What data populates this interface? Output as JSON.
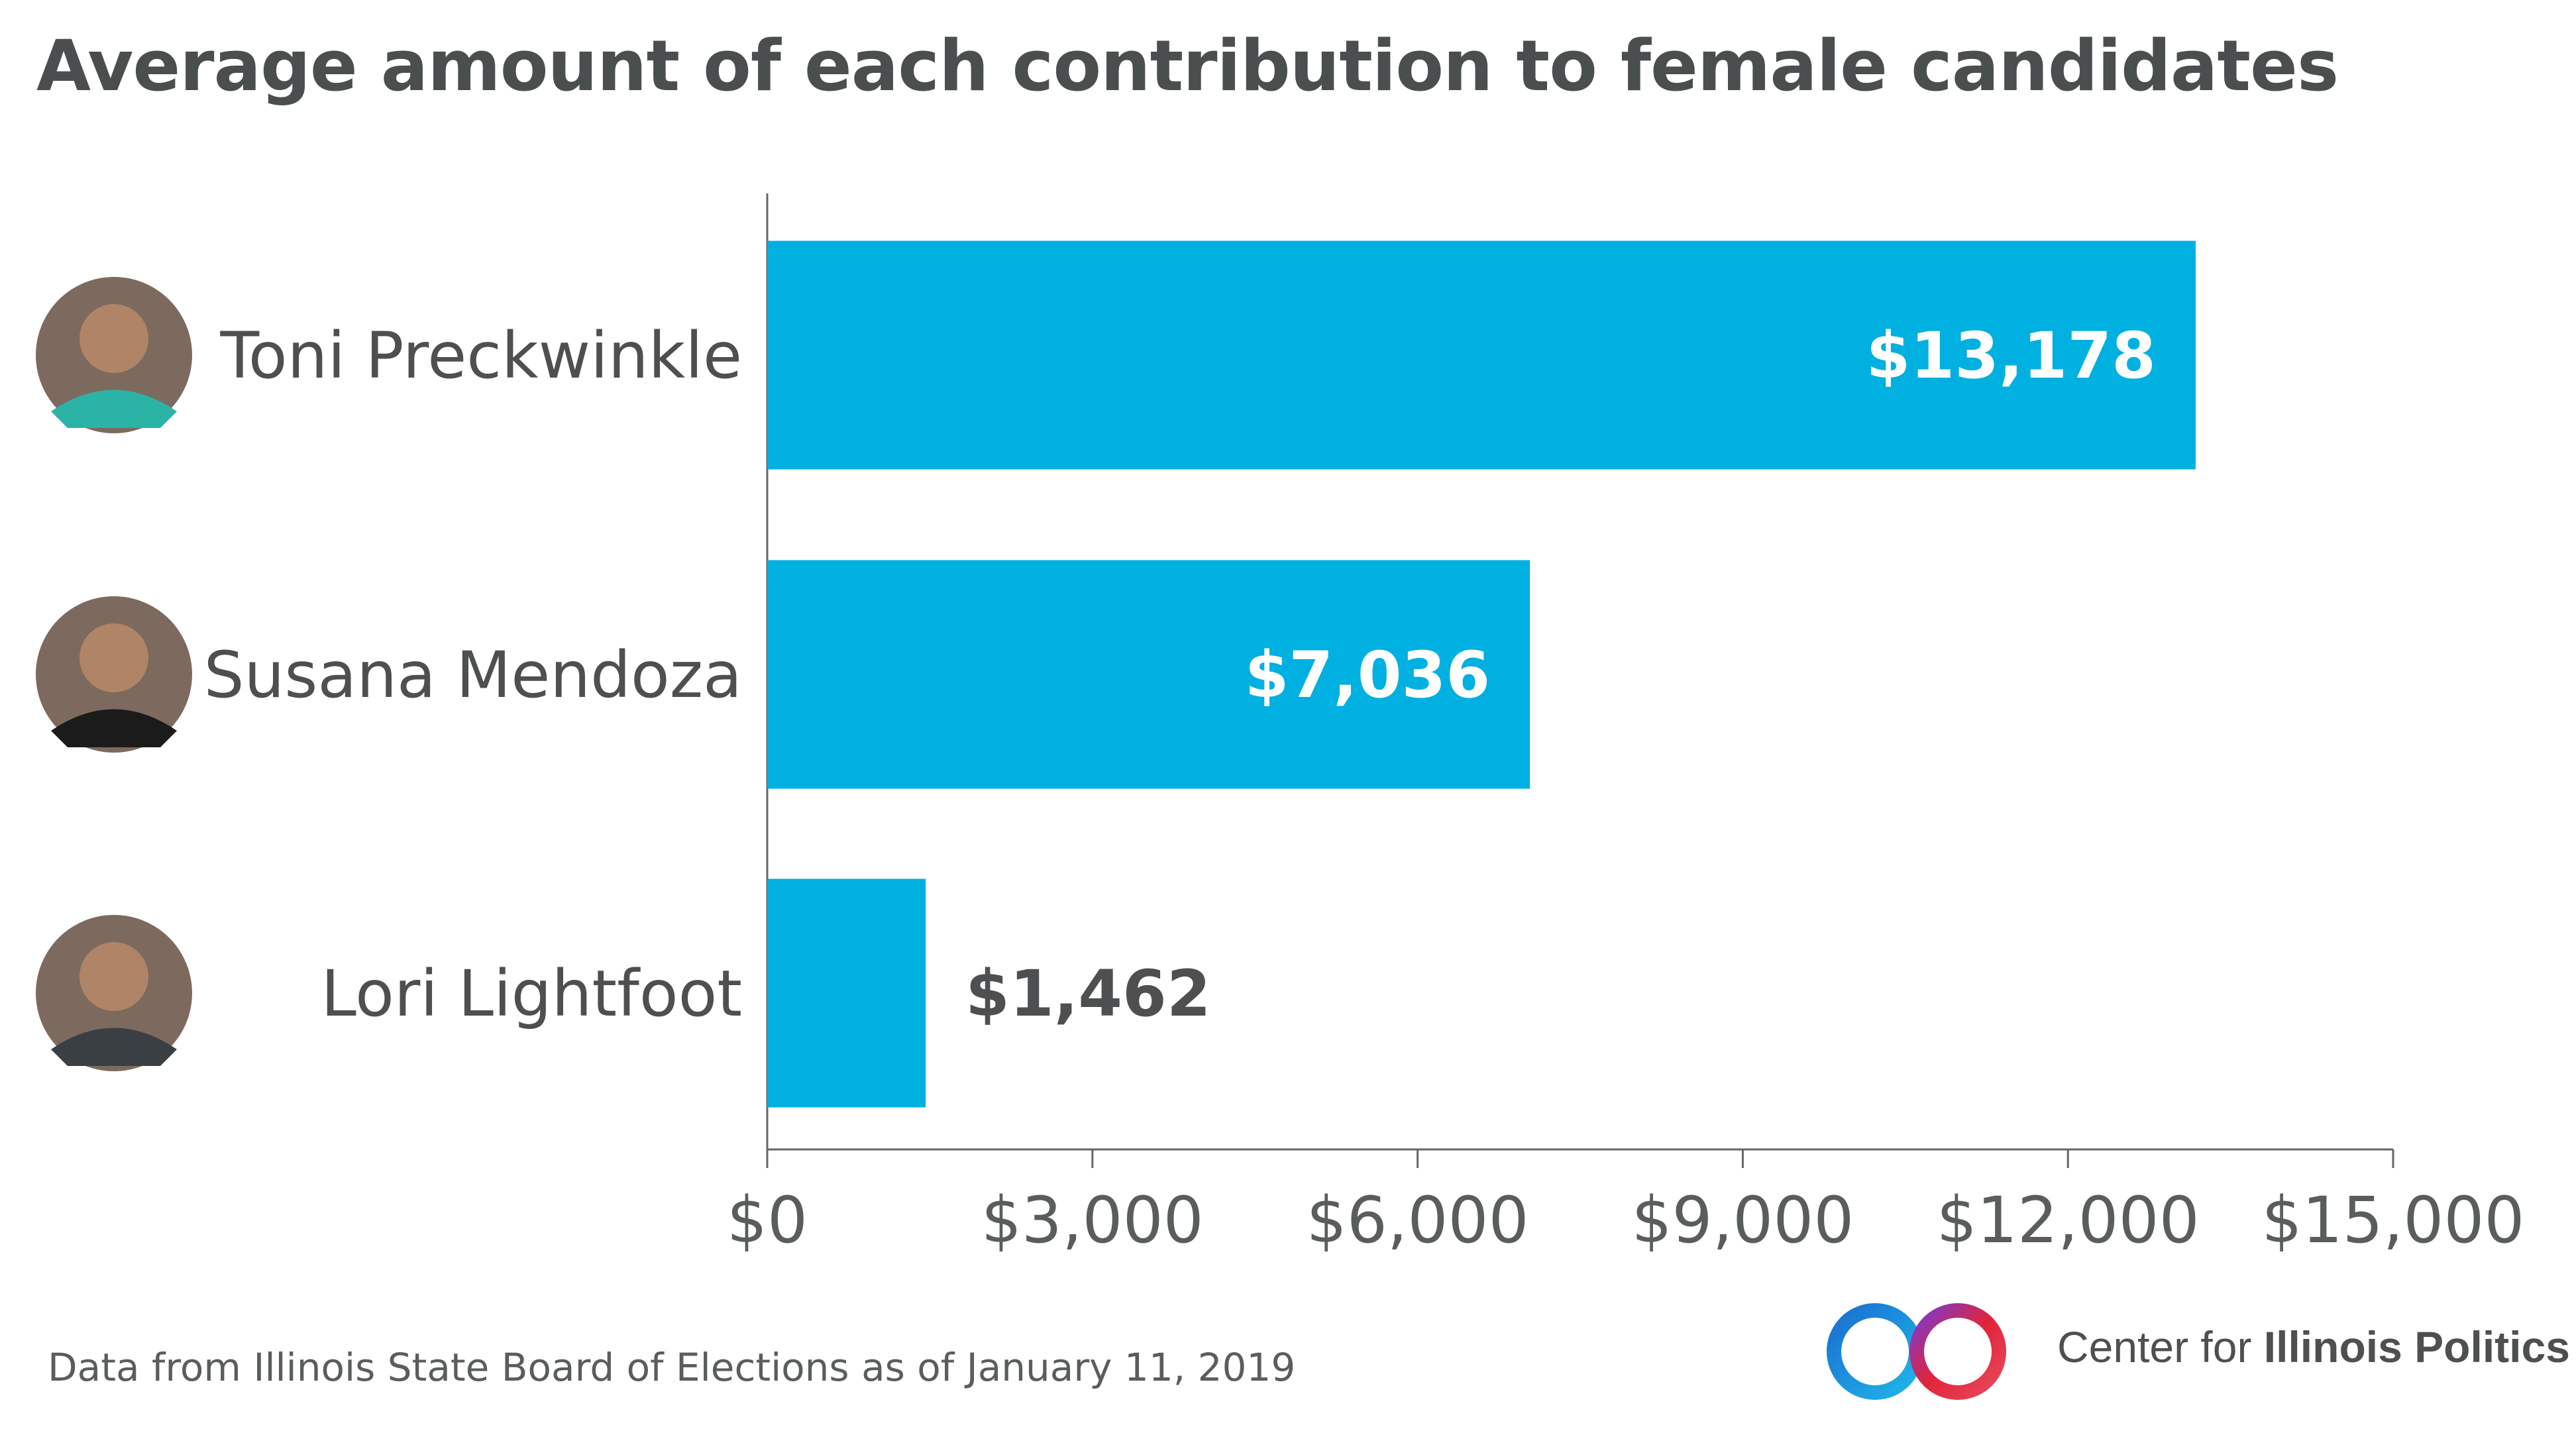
{
  "title": "Average amount of each contribution to female candidates",
  "source_note": "Data from Illinois State Board of Elections as of January 11, 2019",
  "brand": {
    "prefix": "Center for ",
    "name": "Illinois Politics"
  },
  "colors": {
    "bar": "#00b0e0",
    "text": "#4d4f50",
    "axis": "#666666",
    "value_on_bar": "#ffffff",
    "logo_blue": "#1a7fd4",
    "logo_red": "#e0243a"
  },
  "chart_data": {
    "type": "bar",
    "orientation": "horizontal",
    "categories": [
      "Toni Preckwinkle",
      "Susana Mendoza",
      "Lori Lightfoot"
    ],
    "values": [
      13178,
      7036,
      1462
    ],
    "value_labels": [
      "$13,178",
      "$7,036",
      "$1,462"
    ],
    "xlim": [
      0,
      15000
    ],
    "xticks": [
      0,
      3000,
      6000,
      9000,
      12000,
      15000
    ],
    "xtick_labels": [
      "$0",
      "$3,000",
      "$6,000",
      "$9,000",
      "$12,000",
      "$15,000"
    ],
    "grid": false,
    "avatars": [
      "person-photo-icon",
      "person-photo-icon",
      "person-photo-icon"
    ]
  }
}
